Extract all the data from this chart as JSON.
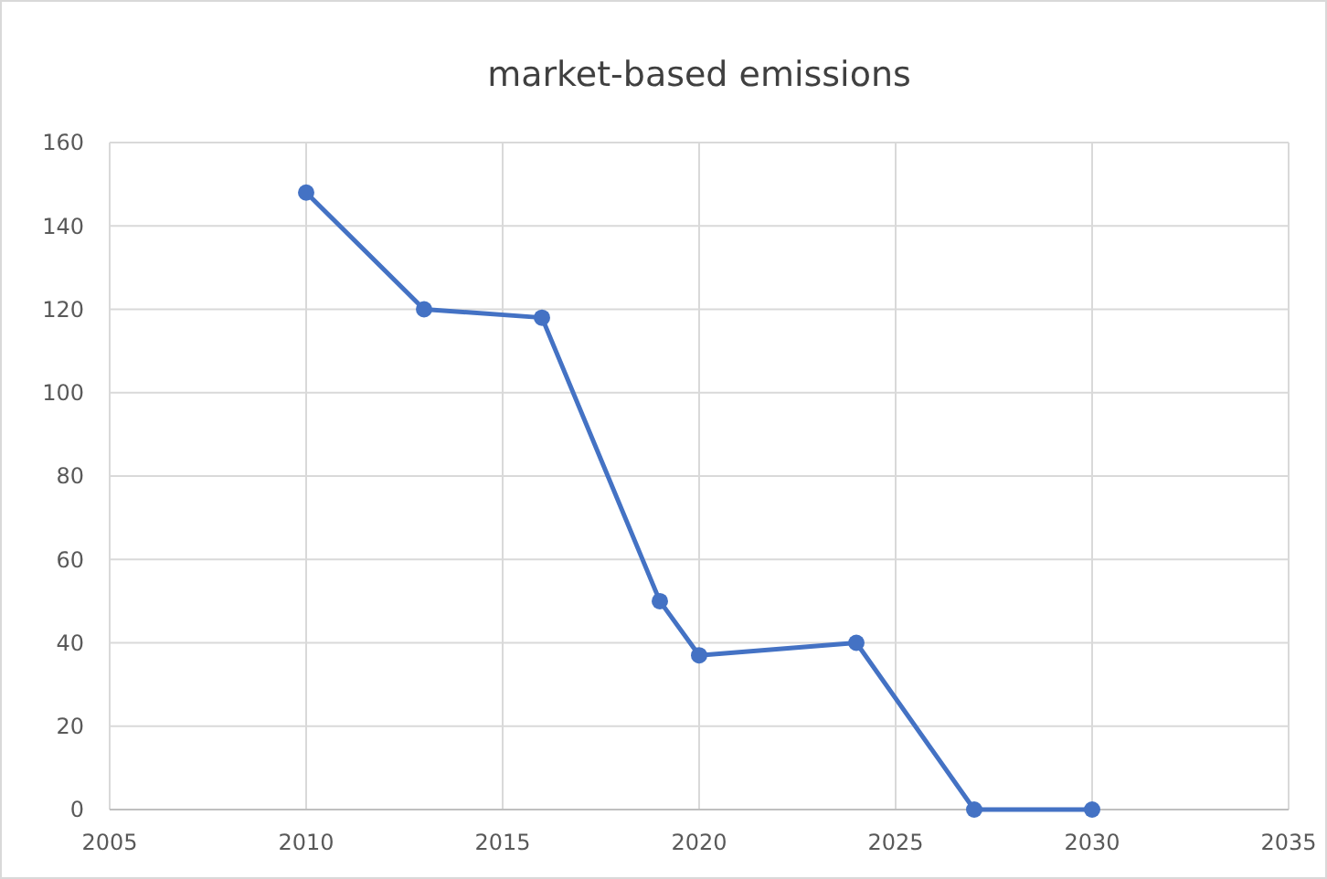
{
  "chart_data": {
    "type": "line",
    "title": "market-based emissions",
    "x": [
      2010,
      2013,
      2016,
      2019,
      2020,
      2024,
      2027,
      2030
    ],
    "series": [
      {
        "color": "#4472c4",
        "values": [
          148,
          120,
          118,
          50,
          37,
          40,
          0,
          0
        ]
      }
    ],
    "xlim": [
      2005,
      2035
    ],
    "xticks": [
      2005,
      2010,
      2015,
      2020,
      2025,
      2030,
      2035
    ],
    "ylim": [
      0,
      160
    ],
    "yticks": [
      0,
      20,
      40,
      60,
      80,
      100,
      120,
      140,
      160
    ],
    "grid": true,
    "marker": "circle",
    "line_style": "solid"
  }
}
